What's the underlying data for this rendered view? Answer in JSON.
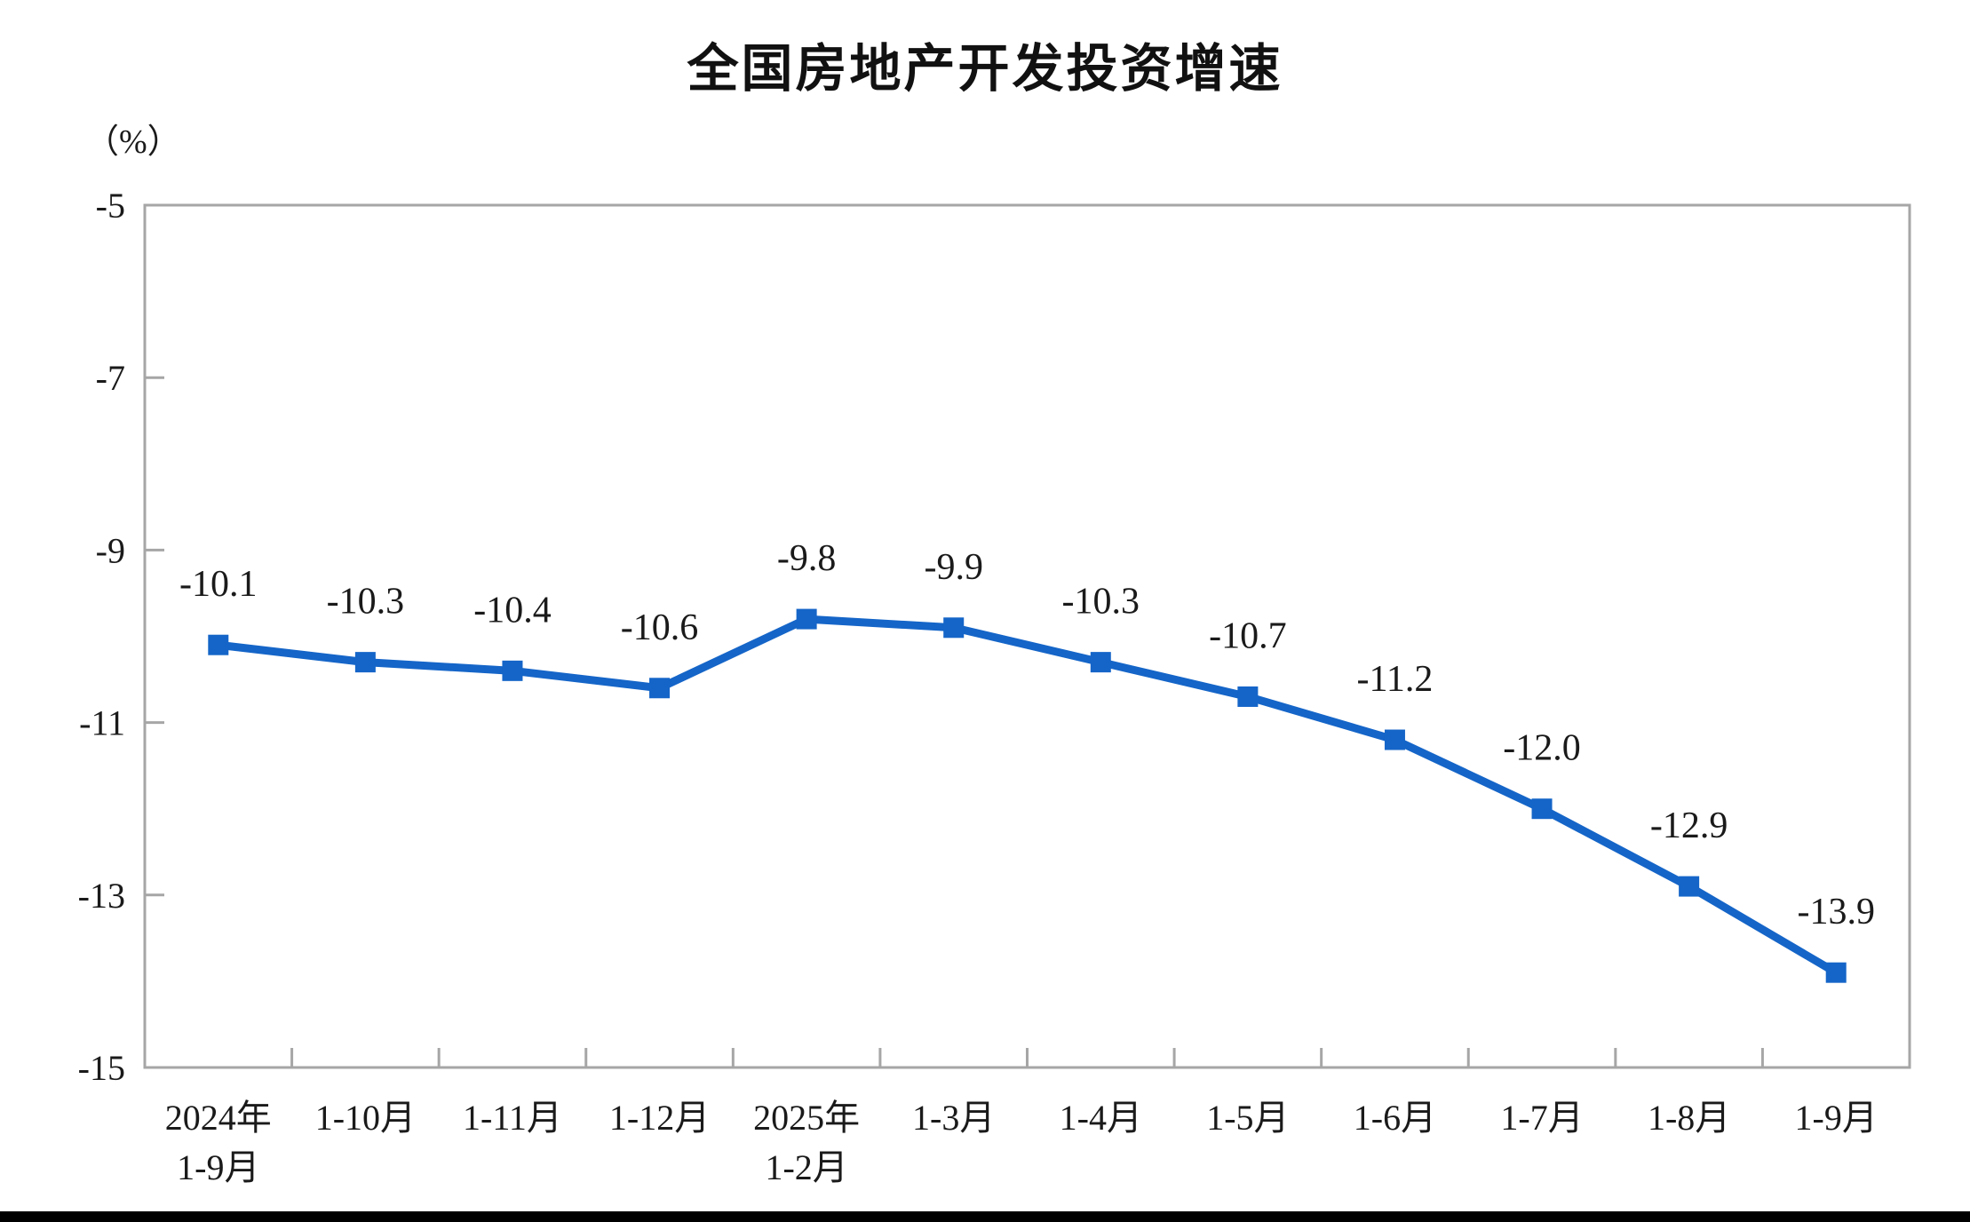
{
  "page": {
    "background": "#ffffff",
    "bottom_bar_color": "#000000"
  },
  "chart_data": {
    "type": "line",
    "title": "全国房地产开发投资增速",
    "unit_label": "（%）",
    "categories": [
      [
        "2024年",
        "1-9月"
      ],
      [
        "1-10月"
      ],
      [
        "1-11月"
      ],
      [
        "1-12月"
      ],
      [
        "2025年",
        "1-2月"
      ],
      [
        "1-3月"
      ],
      [
        "1-4月"
      ],
      [
        "1-5月"
      ],
      [
        "1-6月"
      ],
      [
        "1-7月"
      ],
      [
        "1-8月"
      ],
      [
        "1-9月"
      ]
    ],
    "values": [
      -10.1,
      -10.3,
      -10.4,
      -10.6,
      -9.8,
      -9.9,
      -10.3,
      -10.7,
      -11.2,
      -12.0,
      -12.9,
      -13.9
    ],
    "data_labels": [
      "-10.1",
      "-10.3",
      "-10.4",
      "-10.6",
      "-9.8",
      "-9.9",
      "-10.3",
      "-10.7",
      "-11.2",
      "-12.0",
      "-12.9",
      "-13.9"
    ],
    "y_ticks": [
      -5,
      -7,
      -9,
      -11,
      -13,
      -15
    ],
    "y_tick_labels": [
      "-5",
      "-7",
      "-9",
      "-11",
      "-13",
      "-15"
    ],
    "ylim": [
      -15,
      -5
    ],
    "grid": false,
    "legend": false,
    "marker": "square",
    "line_color": "#1565c8",
    "axis_color": "#a6a6a6",
    "label_color": "#1a1a1a"
  }
}
